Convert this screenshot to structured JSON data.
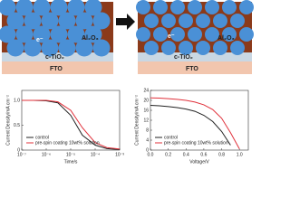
{
  "schematics": [
    {
      "labels": [
        "Al₂O₃",
        "c-TiO₂",
        "FTO",
        "e⁻"
      ]
    },
    {
      "labels": [
        "Al₂O₃",
        "c-TiO₂",
        "FTO",
        "e⁻"
      ]
    }
  ],
  "chart_data": [
    {
      "type": "line",
      "xscale": "log",
      "xlabel": "Time/s",
      "ylabel": "Current Density/mA cm⁻²",
      "x": [
        1e-07,
        3e-07,
        1e-06,
        3e-06,
        1e-05,
        3e-05,
        0.0001,
        0.0003,
        0.001
      ],
      "xlim": [
        1e-07,
        0.001
      ],
      "xticks": [
        {
          "value": 1e-07,
          "label": "10⁻⁷"
        },
        {
          "value": 1e-06,
          "label": "10⁻⁶"
        },
        {
          "value": 1e-05,
          "label": "10⁻⁵"
        },
        {
          "value": 0.0001,
          "label": "10⁻⁴"
        },
        {
          "value": 0.001,
          "label": "10⁻³"
        }
      ],
      "ylim": [
        0,
        1.2
      ],
      "yticks": [
        0,
        {
          "value": 0.5,
          "label": "0.5"
        },
        {
          "value": 1,
          "label": "1.0"
        }
      ],
      "legend": "lower left",
      "series": [
        {
          "name": "control",
          "color": "#222222",
          "values": [
            1.0,
            1.0,
            0.99,
            0.95,
            0.7,
            0.3,
            0.1,
            0.03,
            0.01
          ]
        },
        {
          "name": "pre-spin coating 10wt% solution",
          "color": "#e0303a",
          "values": [
            1.0,
            1.0,
            1.0,
            0.97,
            0.8,
            0.45,
            0.15,
            0.05,
            0.02
          ]
        }
      ]
    },
    {
      "type": "line",
      "xscale": "linear",
      "xlabel": "Voltage/V",
      "ylabel": "Current Density/mA cm⁻²",
      "x": [
        0,
        0.1,
        0.2,
        0.3,
        0.4,
        0.5,
        0.6,
        0.7,
        0.8,
        0.9,
        1.0
      ],
      "xlim": [
        0,
        1.1
      ],
      "xticks": [
        {
          "value": 0,
          "label": "0.0"
        },
        {
          "value": 0.2,
          "label": "0.2"
        },
        {
          "value": 0.4,
          "label": "0.4"
        },
        {
          "value": 0.6,
          "label": "0.6"
        },
        {
          "value": 0.8,
          "label": "0.8"
        },
        {
          "value": 1,
          "label": "1.0"
        }
      ],
      "ylim": [
        0,
        24
      ],
      "yticks": [
        0,
        4,
        8,
        12,
        16,
        20,
        24
      ],
      "legend": "lower left",
      "series": [
        {
          "name": "control",
          "color": "#222222",
          "values": [
            18,
            17.8,
            17.5,
            17.1,
            16.5,
            15.6,
            14,
            11.5,
            7.5,
            2,
            null
          ]
        },
        {
          "name": "pre-spin coating 10wt% solution",
          "color": "#e0303a",
          "values": [
            21,
            20.9,
            20.7,
            20.4,
            20,
            19.3,
            18.2,
            16.3,
            12.8,
            7,
            0.5
          ]
        }
      ]
    }
  ]
}
